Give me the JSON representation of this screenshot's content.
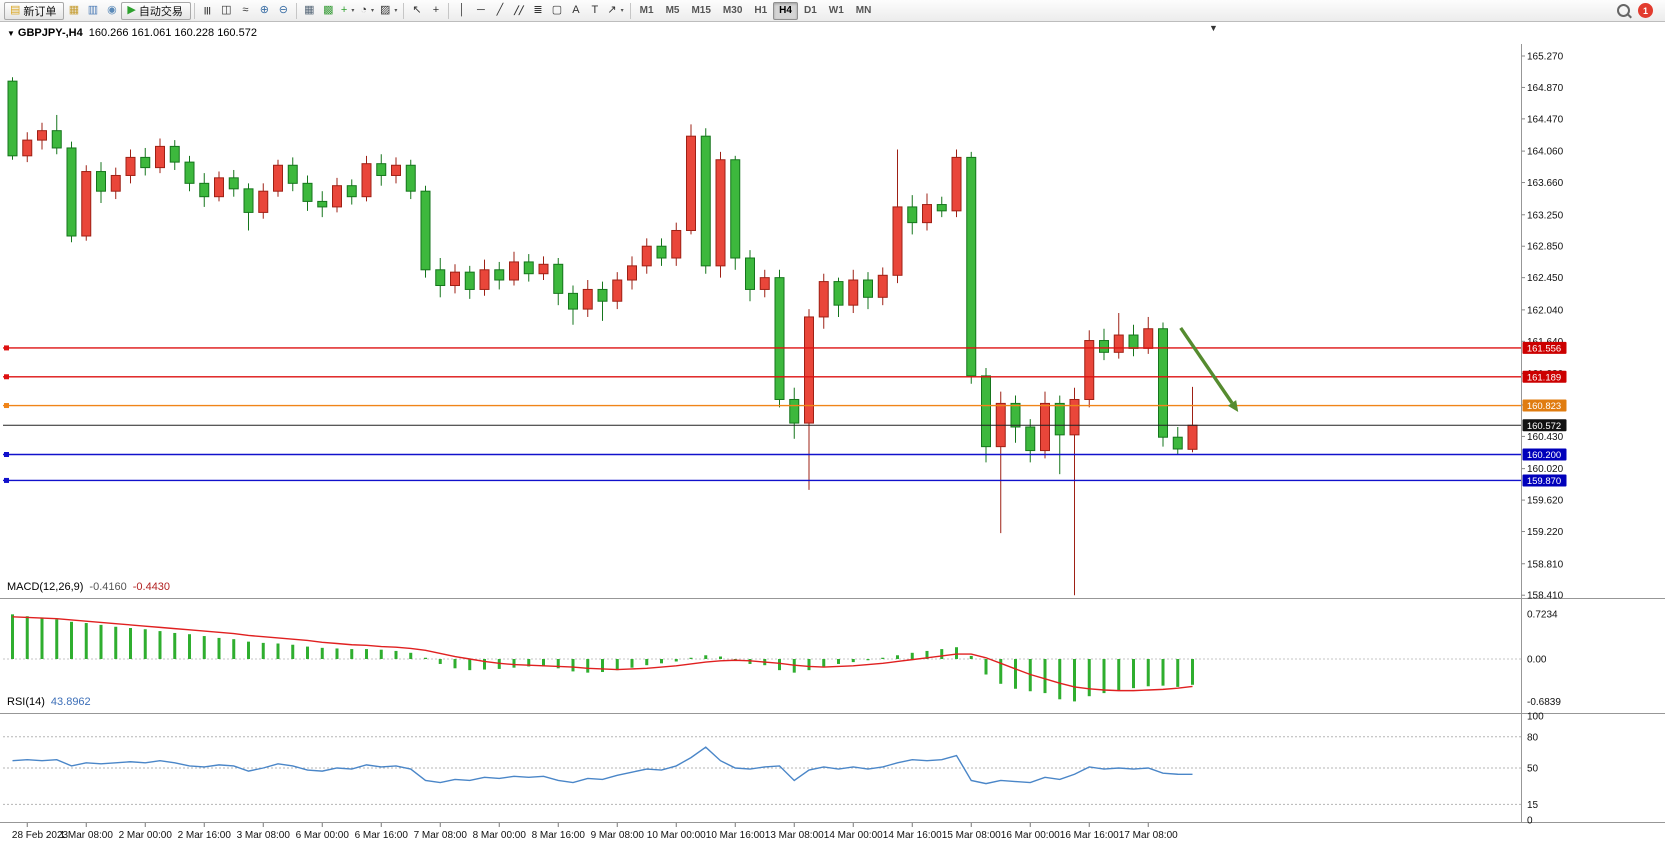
{
  "toolbar": {
    "badge_count": "1",
    "active_timeframe": "H4",
    "items": [
      {
        "name": "new-order-button",
        "kind": "button",
        "glyph": "▤",
        "color": "#d9a520",
        "label": "新订单"
      },
      {
        "name": "market-watch-button",
        "kind": "button",
        "glyph": "▦",
        "color": "#c49a2c"
      },
      {
        "name": "data-window-button",
        "kind": "button",
        "glyph": "▥",
        "color": "#4a7ab5"
      },
      {
        "name": "navigator-button",
        "kind": "button",
        "glyph": "◉",
        "color": "#5b8ab8"
      },
      {
        "name": "autotrading-button",
        "kind": "button",
        "glyph": "▶",
        "color": "#2da12d",
        "label": "自动交易"
      },
      {
        "kind": "sep"
      },
      {
        "name": "bar-chart-button",
        "kind": "button",
        "glyph": "|||",
        "small": true
      },
      {
        "name": "candlestick-chart-button",
        "kind": "button",
        "glyph": "◫"
      },
      {
        "name": "line-chart-button",
        "kind": "button",
        "glyph": "≈"
      },
      {
        "name": "zoom-in-button",
        "kind": "button",
        "glyph": "⊕",
        "color": "#3a6ea5"
      },
      {
        "name": "zoom-out-button",
        "kind": "button",
        "glyph": "⊖",
        "color": "#3a6ea5"
      },
      {
        "kind": "sep"
      },
      {
        "name": "new-chart-button",
        "kind": "button",
        "glyph": "▦",
        "color": "#556677"
      },
      {
        "name": "tile-windows-button",
        "kind": "button",
        "glyph": "▩",
        "color": "#3a9d3a"
      },
      {
        "name": "indicators-button",
        "kind": "button",
        "glyph": "+",
        "color": "#2da12d",
        "caret": true
      },
      {
        "name": "periods-button",
        "kind": "button",
        "glyph": "◔",
        "caret": true
      },
      {
        "name": "templates-button",
        "kind": "button",
        "glyph": "▨",
        "caret": true
      },
      {
        "kind": "sep"
      },
      {
        "name": "cursor-button",
        "kind": "button",
        "glyph": "↖"
      },
      {
        "name": "crosshair-button",
        "kind": "button",
        "glyph": "+"
      },
      {
        "kind": "sep"
      },
      {
        "name": "vertical-line-button",
        "kind": "button",
        "glyph": "│"
      },
      {
        "name": "horizontal-line-button",
        "kind": "button",
        "glyph": "─"
      },
      {
        "name": "trendline-button",
        "kind": "button",
        "glyph": "╱"
      },
      {
        "name": "channel-button",
        "kind": "button",
        "glyph": "╱╱",
        "small": true
      },
      {
        "name": "fibonacci-button",
        "kind": "button",
        "glyph": "≣"
      },
      {
        "name": "shapes-button",
        "kind": "button",
        "glyph": "▢"
      },
      {
        "name": "text-button",
        "kind": "button",
        "glyph": "A"
      },
      {
        "name": "label-button",
        "kind": "button",
        "glyph": "T"
      },
      {
        "name": "arrows-button",
        "kind": "button",
        "glyph": "↗",
        "caret": true
      },
      {
        "kind": "sep"
      },
      {
        "name": "timeframe-m1",
        "kind": "tf",
        "label": "M1"
      },
      {
        "name": "timeframe-m5",
        "kind": "tf",
        "label": "M5"
      },
      {
        "name": "timeframe-m15",
        "kind": "tf",
        "label": "M15"
      },
      {
        "name": "timeframe-m30",
        "kind": "tf",
        "label": "M30"
      },
      {
        "name": "timeframe-h1",
        "kind": "tf",
        "label": "H1"
      },
      {
        "name": "timeframe-h4",
        "kind": "tf",
        "label": "H4"
      },
      {
        "name": "timeframe-d1",
        "kind": "tf",
        "label": "D1"
      },
      {
        "name": "timeframe-w1",
        "kind": "tf",
        "label": "W1"
      },
      {
        "name": "timeframe-mn",
        "kind": "tf",
        "label": "MN"
      },
      {
        "kind": "spacer"
      },
      {
        "name": "search-button",
        "kind": "search"
      },
      {
        "name": "notifications-badge",
        "kind": "badge"
      }
    ]
  },
  "chart": {
    "title": "GBPJPY-,H4",
    "ohlc": "160.266 161.061 160.228 160.572"
  },
  "icons": {
    "expand": "▼",
    "shift_marker": "▼"
  },
  "chart_data": {
    "type": "candlestick",
    "symbol": "GBPJPY-",
    "timeframe": "H4",
    "current_bar": {
      "open": 160.266,
      "high": 161.061,
      "low": 160.228,
      "close": 160.572
    },
    "color_convention": "red-up-green-down",
    "up_color": "#e9463a",
    "up_border": "#9e2015",
    "down_color": "#3db83d",
    "down_border": "#15751c",
    "price_axis_labels": [
      "165.270",
      "164.870",
      "164.470",
      "164.060",
      "163.660",
      "163.250",
      "162.850",
      "162.450",
      "162.040",
      "161.640",
      "161.230",
      "160.830",
      "160.430",
      "160.020",
      "159.620",
      "159.220",
      "158.810",
      "158.410"
    ],
    "date_labels": [
      "28 Feb 2023",
      "1 Mar 08:00",
      "2 Mar 00:00",
      "2 Mar 16:00",
      "3 Mar 08:00",
      "6 Mar 00:00",
      "6 Mar 16:00",
      "7 Mar 08:00",
      "8 Mar 00:00",
      "8 Mar 16:00",
      "9 Mar 08:00",
      "10 Mar 00:00",
      "10 Mar 16:00",
      "13 Mar 08:00",
      "14 Mar 00:00",
      "14 Mar 16:00",
      "15 Mar 08:00",
      "16 Mar 00:00",
      "16 Mar 16:00",
      "17 Mar 08:00"
    ],
    "candles": [
      [
        164.95,
        165.0,
        163.95,
        164.0
      ],
      [
        164.0,
        164.3,
        163.92,
        164.2
      ],
      [
        164.2,
        164.42,
        164.08,
        164.32
      ],
      [
        164.32,
        164.52,
        164.02,
        164.1
      ],
      [
        164.1,
        164.18,
        162.9,
        162.98
      ],
      [
        162.98,
        163.88,
        162.92,
        163.8
      ],
      [
        163.8,
        163.92,
        163.4,
        163.55
      ],
      [
        163.55,
        163.85,
        163.45,
        163.75
      ],
      [
        163.75,
        164.08,
        163.65,
        163.98
      ],
      [
        163.98,
        164.1,
        163.75,
        163.85
      ],
      [
        163.85,
        164.22,
        163.78,
        164.12
      ],
      [
        164.12,
        164.2,
        163.82,
        163.92
      ],
      [
        163.92,
        164.0,
        163.55,
        163.65
      ],
      [
        163.65,
        163.78,
        163.35,
        163.48
      ],
      [
        163.48,
        163.8,
        163.42,
        163.72
      ],
      [
        163.72,
        163.82,
        163.48,
        163.58
      ],
      [
        163.58,
        163.65,
        163.05,
        163.28
      ],
      [
        163.28,
        163.65,
        163.2,
        163.55
      ],
      [
        163.55,
        163.95,
        163.48,
        163.88
      ],
      [
        163.88,
        163.98,
        163.55,
        163.65
      ],
      [
        163.65,
        163.75,
        163.3,
        163.42
      ],
      [
        163.42,
        163.55,
        163.22,
        163.35
      ],
      [
        163.35,
        163.72,
        163.28,
        163.62
      ],
      [
        163.62,
        163.7,
        163.38,
        163.48
      ],
      [
        163.48,
        164.0,
        163.42,
        163.9
      ],
      [
        163.9,
        164.02,
        163.62,
        163.75
      ],
      [
        163.75,
        163.98,
        163.65,
        163.88
      ],
      [
        163.88,
        163.95,
        163.45,
        163.55
      ],
      [
        163.55,
        163.62,
        162.45,
        162.55
      ],
      [
        162.55,
        162.7,
        162.2,
        162.35
      ],
      [
        162.35,
        162.62,
        162.25,
        162.52
      ],
      [
        162.52,
        162.6,
        162.18,
        162.3
      ],
      [
        162.3,
        162.68,
        162.22,
        162.55
      ],
      [
        162.55,
        162.65,
        162.3,
        162.42
      ],
      [
        162.42,
        162.78,
        162.35,
        162.65
      ],
      [
        162.65,
        162.75,
        162.4,
        162.5
      ],
      [
        162.5,
        162.72,
        162.42,
        162.62
      ],
      [
        162.62,
        162.7,
        162.1,
        162.25
      ],
      [
        162.25,
        162.35,
        161.85,
        162.05
      ],
      [
        162.05,
        162.42,
        161.95,
        162.3
      ],
      [
        162.3,
        162.4,
        161.9,
        162.15
      ],
      [
        162.15,
        162.52,
        162.05,
        162.42
      ],
      [
        162.42,
        162.72,
        162.3,
        162.6
      ],
      [
        162.6,
        162.95,
        162.5,
        162.85
      ],
      [
        162.85,
        162.95,
        162.6,
        162.7
      ],
      [
        162.7,
        163.15,
        162.6,
        163.05
      ],
      [
        163.05,
        164.4,
        163.0,
        164.25
      ],
      [
        164.25,
        164.35,
        162.5,
        162.6
      ],
      [
        162.6,
        164.05,
        162.45,
        163.95
      ],
      [
        163.95,
        164.0,
        162.55,
        162.7
      ],
      [
        162.7,
        162.8,
        162.15,
        162.3
      ],
      [
        162.3,
        162.55,
        162.2,
        162.45
      ],
      [
        162.45,
        162.55,
        160.8,
        160.9
      ],
      [
        160.9,
        161.05,
        160.4,
        160.6
      ],
      [
        160.6,
        162.05,
        159.75,
        161.95
      ],
      [
        161.95,
        162.5,
        161.8,
        162.4
      ],
      [
        162.4,
        162.45,
        161.95,
        162.1
      ],
      [
        162.1,
        162.55,
        162.0,
        162.42
      ],
      [
        162.42,
        162.52,
        162.05,
        162.2
      ],
      [
        162.2,
        162.58,
        162.1,
        162.48
      ],
      [
        162.48,
        164.08,
        162.38,
        163.35
      ],
      [
        163.35,
        163.5,
        163.0,
        163.15
      ],
      [
        163.15,
        163.52,
        163.05,
        163.38
      ],
      [
        163.38,
        163.48,
        163.22,
        163.3
      ],
      [
        163.3,
        164.08,
        163.22,
        163.98
      ],
      [
        163.98,
        164.05,
        161.1,
        161.2
      ],
      [
        161.2,
        161.3,
        160.1,
        160.3
      ],
      [
        160.3,
        161.0,
        159.2,
        160.85
      ],
      [
        160.85,
        160.95,
        160.35,
        160.55
      ],
      [
        160.55,
        160.65,
        160.1,
        160.25
      ],
      [
        160.25,
        161.0,
        160.15,
        160.85
      ],
      [
        160.85,
        160.95,
        159.95,
        160.45
      ],
      [
        160.45,
        161.05,
        158.41,
        160.9
      ],
      [
        160.9,
        161.78,
        160.8,
        161.65
      ],
      [
        161.65,
        161.8,
        161.4,
        161.5
      ],
      [
        161.5,
        162.0,
        161.42,
        161.72
      ],
      [
        161.72,
        161.85,
        161.45,
        161.55
      ],
      [
        161.55,
        161.95,
        161.48,
        161.8
      ],
      [
        161.8,
        161.88,
        160.3,
        160.42
      ],
      [
        160.42,
        160.55,
        160.2,
        160.27
      ],
      [
        160.266,
        161.061,
        160.228,
        160.572
      ]
    ],
    "levels": [
      {
        "name": "resistance-line-1",
        "price": 161.556,
        "label": "161.556",
        "color": "#dd1111",
        "label_bg": "#cc0000"
      },
      {
        "name": "resistance-line-2",
        "price": 161.189,
        "label": "161.189",
        "color": "#dd1111",
        "label_bg": "#cc0000"
      },
      {
        "name": "mid-line",
        "price": 160.823,
        "label": "160.823",
        "color": "#f08418",
        "label_bg": "#e07c10"
      },
      {
        "name": "bid-price-line",
        "price": 160.572,
        "label": "160.572",
        "color": "#222222",
        "label_bg": "#111111"
      },
      {
        "name": "support-line-1",
        "price": 160.2,
        "label": "160.200",
        "color": "#1111cc",
        "label_bg": "#0000bb"
      },
      {
        "name": "support-line-2",
        "price": 159.87,
        "label": "159.870",
        "color": "#1111cc",
        "label_bg": "#0000bb"
      }
    ],
    "macd": {
      "title": "MACD(12,26,9)",
      "value_main": "-0.4160",
      "value_signal": "-0.4430",
      "axis_labels": [
        "0.7234",
        "0.00",
        "-0.6839"
      ],
      "hist_color": "#2fae2f",
      "signal_color": "#e02020",
      "histogram": [
        0.72,
        0.69,
        0.67,
        0.64,
        0.6,
        0.58,
        0.55,
        0.52,
        0.5,
        0.48,
        0.45,
        0.42,
        0.4,
        0.37,
        0.34,
        0.32,
        0.28,
        0.26,
        0.25,
        0.23,
        0.2,
        0.18,
        0.17,
        0.16,
        0.16,
        0.15,
        0.13,
        0.1,
        0.02,
        -0.08,
        -0.15,
        -0.18,
        -0.17,
        -0.16,
        -0.14,
        -0.12,
        -0.12,
        -0.15,
        -0.2,
        -0.22,
        -0.21,
        -0.18,
        -0.14,
        -0.1,
        -0.07,
        -0.04,
        0.02,
        0.06,
        0.04,
        -0.02,
        -0.08,
        -0.1,
        -0.18,
        -0.22,
        -0.18,
        -0.12,
        -0.08,
        -0.05,
        -0.02,
        0.02,
        0.06,
        0.1,
        0.13,
        0.16,
        0.19,
        0.05,
        -0.25,
        -0.4,
        -0.48,
        -0.52,
        -0.55,
        -0.65,
        -0.684,
        -0.6,
        -0.55,
        -0.5,
        -0.47,
        -0.44,
        -0.43,
        -0.45,
        -0.416
      ],
      "signal": [
        0.68,
        0.67,
        0.66,
        0.65,
        0.63,
        0.61,
        0.59,
        0.57,
        0.55,
        0.53,
        0.51,
        0.49,
        0.47,
        0.45,
        0.43,
        0.41,
        0.38,
        0.36,
        0.34,
        0.32,
        0.3,
        0.27,
        0.25,
        0.23,
        0.22,
        0.2,
        0.19,
        0.17,
        0.14,
        0.09,
        0.04,
        0.0,
        -0.04,
        -0.07,
        -0.09,
        -0.1,
        -0.11,
        -0.12,
        -0.13,
        -0.15,
        -0.16,
        -0.17,
        -0.16,
        -0.15,
        -0.13,
        -0.11,
        -0.08,
        -0.05,
        -0.03,
        -0.02,
        -0.03,
        -0.05,
        -0.07,
        -0.1,
        -0.12,
        -0.13,
        -0.12,
        -0.11,
        -0.09,
        -0.07,
        -0.04,
        -0.01,
        0.02,
        0.05,
        0.08,
        0.08,
        0.02,
        -0.07,
        -0.16,
        -0.25,
        -0.32,
        -0.39,
        -0.45,
        -0.48,
        -0.5,
        -0.51,
        -0.51,
        -0.5,
        -0.49,
        -0.47,
        -0.443
      ]
    },
    "rsi": {
      "title": "RSI(14)",
      "value": "43.8962",
      "color": "#4a86c8",
      "levels": [
        80,
        50,
        15
      ],
      "axis_labels": [
        "100",
        "80",
        "50",
        "15",
        "0"
      ],
      "series": [
        57,
        58,
        57,
        58,
        52,
        55,
        54,
        55,
        56,
        55,
        57,
        55,
        52,
        51,
        53,
        52,
        47,
        50,
        54,
        52,
        48,
        47,
        50,
        49,
        53,
        51,
        52,
        49,
        38,
        36,
        39,
        38,
        41,
        40,
        42,
        41,
        42,
        38,
        36,
        40,
        39,
        43,
        46,
        49,
        48,
        52,
        60,
        70,
        57,
        50,
        49,
        51,
        52,
        38,
        48,
        51,
        49,
        51,
        49,
        51,
        55,
        58,
        57,
        58,
        62,
        38,
        35,
        38,
        37,
        36,
        41,
        39,
        44,
        51,
        49,
        50,
        49,
        50,
        45,
        44,
        43.9
      ]
    },
    "annotation_arrow": {
      "name": "trend-arrow",
      "color": "#558B2F",
      "from": {
        "index": 79.2,
        "price": 161.81
      },
      "to": {
        "index": 83.1,
        "price": 160.74
      }
    }
  }
}
